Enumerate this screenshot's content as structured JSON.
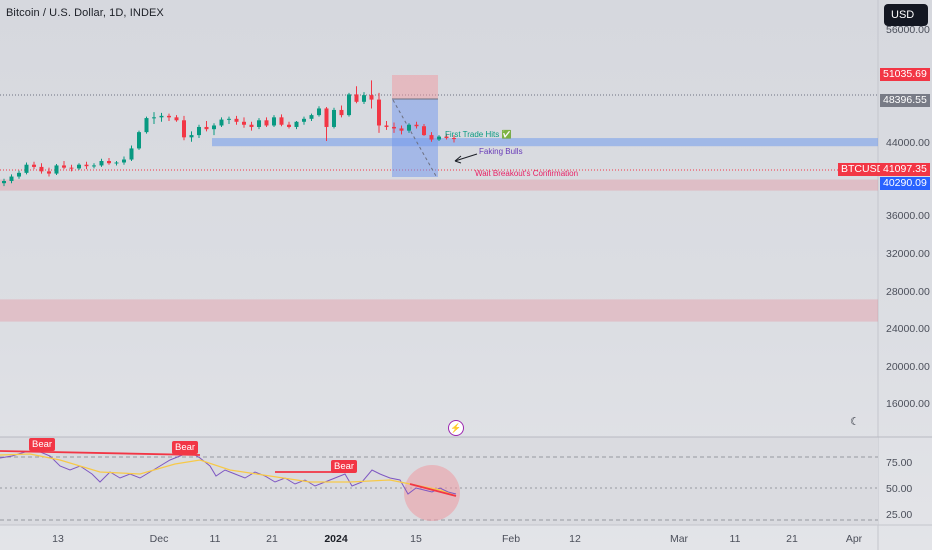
{
  "header": {
    "title": "Bitcoin / U.S. Dollar, 1D, INDEX"
  },
  "currency_button": {
    "label": "USD"
  },
  "price_labels": {
    "upper_zone": {
      "text": "51035.69",
      "value": 51035.69,
      "color": "#f23645"
    },
    "last_close": {
      "text": "48396.55",
      "value": 48396.55,
      "color": "#787b86"
    },
    "symbol": {
      "text": "BTCUSD",
      "value": 41097.35,
      "color": "#f23645"
    },
    "current": {
      "text": "41097.35",
      "value": 41097.35,
      "color": "#f23645"
    },
    "support": {
      "text": "40290.09",
      "value": 40290.09,
      "color": "#2962ff"
    }
  },
  "annotations": {
    "first_trade": "First Trade Hits ✅",
    "faking_bulls": "Faking Bulls",
    "breakout": "Wait Breakout's Confirmation"
  },
  "rsi": {
    "y_ticks": [
      "75.00",
      "50.00",
      "25.00"
    ],
    "bear_labels": [
      "Bear",
      "Bear",
      "Bear"
    ]
  },
  "chart_data": {
    "type": "candlestick",
    "title": "Bitcoin / U.S. Dollar, 1D, INDEX",
    "y_ticks": [
      "56000.00",
      "52000.00",
      "48000.00",
      "44000.00",
      "36000.00",
      "32000.00",
      "28000.00",
      "24000.00",
      "20000.00",
      "16000.00"
    ],
    "y_tick_values": [
      56000,
      52000,
      48000,
      44000,
      36000,
      32000,
      28000,
      24000,
      20000,
      16000
    ],
    "x_ticks": [
      "13",
      "Dec",
      "11",
      "21",
      "2024",
      "15",
      "Feb",
      "12",
      "Mar",
      "11",
      "21",
      "Apr"
    ],
    "zones": [
      {
        "low": 40000,
        "high": 41100,
        "color": "#5b8def"
      },
      {
        "low": 34000,
        "high": 35500,
        "color": "#e88a95"
      },
      {
        "low": 16300,
        "high": 19300,
        "color": "#e88a95"
      }
    ],
    "candles": [
      [
        35000,
        35600,
        34600,
        35300
      ],
      [
        35300,
        36200,
        35000,
        35900
      ],
      [
        35900,
        36700,
        35600,
        36400
      ],
      [
        36400,
        37800,
        36200,
        37500
      ],
      [
        37500,
        37900,
        36900,
        37200
      ],
      [
        37200,
        37700,
        36300,
        36600
      ],
      [
        36600,
        37100,
        35900,
        36300
      ],
      [
        36300,
        37600,
        36100,
        37400
      ],
      [
        37400,
        38000,
        36900,
        37100
      ],
      [
        37100,
        37500,
        36600,
        37000
      ],
      [
        37000,
        37700,
        36800,
        37500
      ],
      [
        37500,
        37900,
        36900,
        37300
      ],
      [
        37300,
        37700,
        37000,
        37400
      ],
      [
        37400,
        38300,
        37200,
        38000
      ],
      [
        38000,
        38400,
        37500,
        37700
      ],
      [
        37700,
        38000,
        37400,
        37800
      ],
      [
        37800,
        38600,
        37500,
        38200
      ],
      [
        38200,
        40100,
        38000,
        39700
      ],
      [
        39700,
        42100,
        39500,
        41900
      ],
      [
        41900,
        44000,
        41700,
        43800
      ],
      [
        43800,
        44600,
        43000,
        43900
      ],
      [
        43900,
        44500,
        43300,
        44100
      ],
      [
        44100,
        44400,
        43400,
        43900
      ],
      [
        43900,
        44200,
        43300,
        43500
      ],
      [
        43500,
        44100,
        40800,
        41200
      ],
      [
        41200,
        42000,
        40600,
        41500
      ],
      [
        41500,
        42900,
        41100,
        42600
      ],
      [
        42600,
        43400,
        42000,
        42300
      ],
      [
        42300,
        43100,
        41500,
        42800
      ],
      [
        42800,
        43900,
        42600,
        43600
      ],
      [
        43600,
        44000,
        43000,
        43700
      ],
      [
        43700,
        44100,
        42900,
        43300
      ],
      [
        43300,
        43900,
        42500,
        42900
      ],
      [
        42900,
        43300,
        42100,
        42600
      ],
      [
        42600,
        43800,
        42300,
        43500
      ],
      [
        43500,
        43900,
        42600,
        42800
      ],
      [
        42800,
        44200,
        42600,
        43900
      ],
      [
        43900,
        44300,
        42700,
        42900
      ],
      [
        42900,
        43300,
        42400,
        42600
      ],
      [
        42600,
        43400,
        42300,
        43300
      ],
      [
        43300,
        44000,
        42900,
        43700
      ],
      [
        43700,
        44400,
        43400,
        44200
      ],
      [
        44200,
        45400,
        44000,
        45100
      ],
      [
        45100,
        45300,
        40700,
        42600
      ],
      [
        42600,
        45200,
        42400,
        44900
      ],
      [
        44900,
        45500,
        43900,
        44200
      ],
      [
        44200,
        47200,
        44000,
        47000
      ],
      [
        47000,
        48100,
        45800,
        46000
      ],
      [
        46000,
        47300,
        45700,
        46900
      ],
      [
        46900,
        48900,
        45100,
        46300
      ],
      [
        46300,
        47200,
        41800,
        42800
      ],
      [
        42800,
        43400,
        42200,
        42600
      ],
      [
        42600,
        43200,
        41800,
        42400
      ],
      [
        42400,
        42800,
        41600,
        42100
      ],
      [
        42100,
        43100,
        41800,
        42900
      ],
      [
        42900,
        43300,
        42400,
        42700
      ],
      [
        42700,
        43000,
        41400,
        41500
      ],
      [
        41500,
        41900,
        40600,
        40900
      ],
      [
        40900,
        41500,
        40700,
        41300
      ],
      [
        41300,
        41700,
        40900,
        41100
      ],
      [
        41100,
        41500,
        40500,
        41097.35
      ]
    ]
  }
}
